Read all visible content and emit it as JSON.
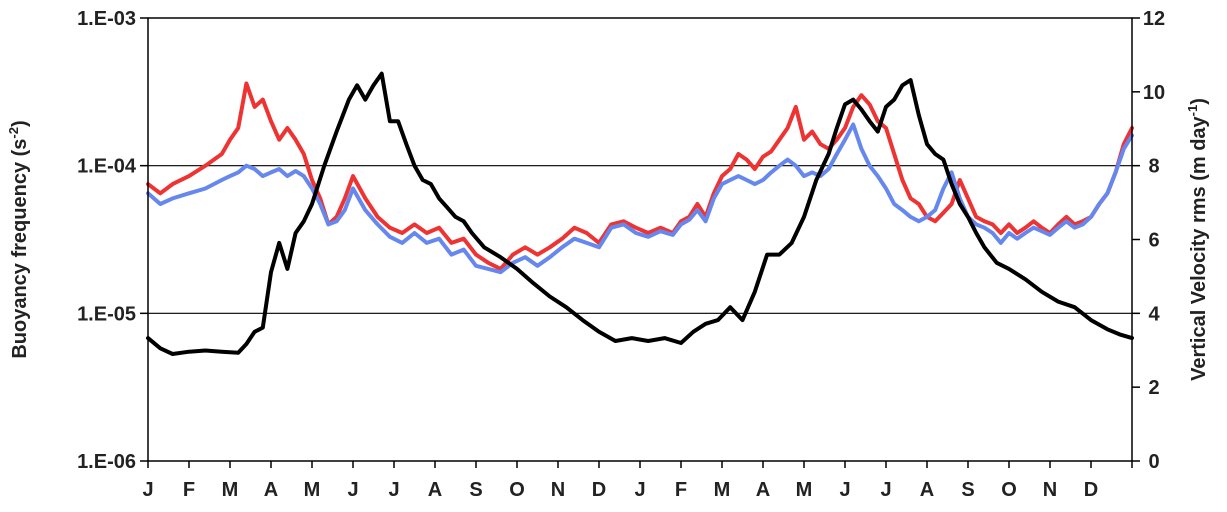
{
  "chart_data": {
    "type": "line",
    "title": "",
    "y_left": {
      "label": "Buoyancy frequency",
      "unit_prefix": "(s",
      "unit_sup": "-2",
      "unit_suffix": ")",
      "scale": "log",
      "range": [
        1e-06,
        0.001
      ],
      "ticks": [
        1e-06,
        1e-05,
        0.0001,
        0.001
      ],
      "tick_labels": [
        "1.E-06",
        "1.E-05",
        "1.E-04",
        "1.E-03"
      ]
    },
    "y_right": {
      "label": "Vertical Velocity rms",
      "unit_prefix": "(m day",
      "unit_sup": "-1",
      "unit_suffix": ")",
      "scale": "linear",
      "range": [
        0,
        12
      ],
      "ticks": [
        0,
        2,
        4,
        6,
        8,
        10,
        12
      ],
      "tick_labels": [
        "0",
        "2",
        "4",
        "6",
        "8",
        "10",
        "12"
      ]
    },
    "x_axis": {
      "range": [
        0,
        24
      ],
      "month_labels": [
        "J",
        "F",
        "M",
        "A",
        "M",
        "J",
        "J",
        "A",
        "S",
        "O",
        "N",
        "D",
        "J",
        "F",
        "M",
        "A",
        "M",
        "J",
        "J",
        "A",
        "S",
        "O",
        "N",
        "D"
      ]
    },
    "grid": {
      "horizontal_at_left_values": [
        1e-05,
        0.0001
      ]
    },
    "series": [
      {
        "axis": "left",
        "color": "#000000",
        "x": [
          0,
          0.3,
          0.6,
          1.0,
          1.4,
          1.8,
          2.2,
          2.4,
          2.6,
          2.8,
          3.0,
          3.2,
          3.4,
          3.6,
          3.8,
          4.0,
          4.3,
          4.6,
          4.9,
          5.1,
          5.3,
          5.5,
          5.7,
          5.9,
          6.1,
          6.3,
          6.5,
          6.7,
          6.9,
          7.1,
          7.3,
          7.5,
          7.7,
          7.9,
          8.2,
          8.6,
          9.0,
          9.4,
          9.8,
          10.2,
          10.6,
          11.0,
          11.4,
          11.8,
          12.2,
          12.6,
          13.0,
          13.3,
          13.6,
          13.9,
          14.2,
          14.5,
          14.8,
          15.1,
          15.4,
          15.7,
          16.0,
          16.3,
          16.6,
          16.8,
          17.0,
          17.2,
          17.4,
          17.6,
          17.8,
          18.0,
          18.2,
          18.4,
          18.6,
          18.8,
          19.0,
          19.2,
          19.4,
          19.6,
          19.8,
          20.0,
          20.2,
          20.4,
          20.7,
          21.0,
          21.4,
          21.8,
          22.2,
          22.6,
          23.0,
          23.4,
          23.7,
          24.0
        ],
        "y": [
          6.8e-06,
          5.8e-06,
          5.3e-06,
          5.5e-06,
          5.6e-06,
          5.5e-06,
          5.4e-06,
          6.2e-06,
          7.5e-06,
          8e-06,
          1.9e-05,
          3e-05,
          2e-05,
          3.5e-05,
          4.2e-05,
          5.5e-05,
          0.0001,
          0.00017,
          0.00028,
          0.00035,
          0.00028,
          0.00035,
          0.00042,
          0.0002,
          0.0002,
          0.00014,
          0.0001,
          8e-05,
          7.5e-05,
          6e-05,
          5.2e-05,
          4.5e-05,
          4.2e-05,
          3.5e-05,
          2.8e-05,
          2.4e-05,
          2e-05,
          1.6e-05,
          1.3e-05,
          1.1e-05,
          9e-06,
          7.5e-06,
          6.5e-06,
          6.8e-06,
          6.5e-06,
          6.8e-06,
          6.3e-06,
          7.5e-06,
          8.5e-06,
          9e-06,
          1.1e-05,
          9e-06,
          1.4e-05,
          2.5e-05,
          2.5e-05,
          3e-05,
          4.5e-05,
          8e-05,
          0.00012,
          0.00018,
          0.00026,
          0.00028,
          0.00024,
          0.0002,
          0.00017,
          0.00025,
          0.00028,
          0.00035,
          0.00038,
          0.00022,
          0.00014,
          0.00012,
          0.00011,
          7.5e-05,
          5.5e-05,
          4.5e-05,
          3.5e-05,
          2.8e-05,
          2.2e-05,
          2e-05,
          1.7e-05,
          1.4e-05,
          1.2e-05,
          1.1e-05,
          9e-06,
          7.8e-06,
          7.2e-06,
          6.8e-06
        ]
      },
      {
        "axis": "left",
        "color": "#ee3333",
        "x": [
          0,
          0.3,
          0.6,
          1.0,
          1.4,
          1.8,
          2.0,
          2.2,
          2.4,
          2.6,
          2.8,
          3.0,
          3.2,
          3.4,
          3.6,
          3.8,
          4.0,
          4.2,
          4.4,
          4.6,
          4.8,
          5.0,
          5.3,
          5.6,
          5.9,
          6.2,
          6.5,
          6.8,
          7.1,
          7.4,
          7.7,
          8.0,
          8.3,
          8.6,
          8.9,
          9.2,
          9.5,
          9.8,
          10.1,
          10.4,
          10.7,
          11.0,
          11.3,
          11.6,
          11.9,
          12.2,
          12.5,
          12.8,
          13.0,
          13.2,
          13.4,
          13.6,
          13.8,
          14.0,
          14.2,
          14.4,
          14.6,
          14.8,
          15.0,
          15.2,
          15.4,
          15.6,
          15.8,
          16.0,
          16.2,
          16.4,
          16.6,
          16.8,
          17.0,
          17.2,
          17.4,
          17.6,
          17.8,
          18.0,
          18.2,
          18.4,
          18.6,
          18.8,
          19.0,
          19.2,
          19.4,
          19.6,
          19.8,
          20.0,
          20.2,
          20.4,
          20.6,
          20.8,
          21.0,
          21.2,
          21.4,
          21.6,
          21.8,
          22.0,
          22.2,
          22.4,
          22.6,
          22.8,
          23.0,
          23.2,
          23.4,
          23.6,
          23.8,
          24.0
        ],
        "y": [
          7.5e-05,
          6.5e-05,
          7.5e-05,
          8.5e-05,
          0.0001,
          0.00012,
          0.00015,
          0.00018,
          0.00036,
          0.00025,
          0.00028,
          0.0002,
          0.00015,
          0.00018,
          0.00015,
          0.00012,
          8e-05,
          6e-05,
          4e-05,
          4.5e-05,
          6e-05,
          8.5e-05,
          6e-05,
          4.5e-05,
          3.8e-05,
          3.5e-05,
          4e-05,
          3.5e-05,
          3.8e-05,
          3e-05,
          3.2e-05,
          2.5e-05,
          2.2e-05,
          2e-05,
          2.5e-05,
          2.8e-05,
          2.5e-05,
          2.8e-05,
          3.2e-05,
          3.8e-05,
          3.5e-05,
          3e-05,
          4e-05,
          4.2e-05,
          3.8e-05,
          3.5e-05,
          3.8e-05,
          3.5e-05,
          4.2e-05,
          4.5e-05,
          5.5e-05,
          4.5e-05,
          6.5e-05,
          8.5e-05,
          9.5e-05,
          0.00012,
          0.00011,
          9.5e-05,
          0.000115,
          0.000125,
          0.00015,
          0.00018,
          0.00025,
          0.00015,
          0.00017,
          0.00014,
          0.00013,
          0.00015,
          0.00018,
          0.00025,
          0.0003,
          0.00026,
          0.0002,
          0.00018,
          0.00012,
          8e-05,
          6e-05,
          5.5e-05,
          4.5e-05,
          4.2e-05,
          4.8e-05,
          5.5e-05,
          8e-05,
          6e-05,
          4.5e-05,
          4.2e-05,
          4e-05,
          3.5e-05,
          4e-05,
          3.5e-05,
          3.8e-05,
          4.2e-05,
          3.8e-05,
          3.5e-05,
          4e-05,
          4.5e-05,
          4e-05,
          4.2e-05,
          4.5e-05,
          5.5e-05,
          6.5e-05,
          9e-05,
          0.00014,
          0.00018
        ]
      },
      {
        "axis": "left",
        "color": "#6688ee",
        "x": [
          0,
          0.3,
          0.6,
          1.0,
          1.4,
          1.8,
          2.0,
          2.2,
          2.4,
          2.6,
          2.8,
          3.0,
          3.2,
          3.4,
          3.6,
          3.8,
          4.0,
          4.2,
          4.4,
          4.6,
          4.8,
          5.0,
          5.3,
          5.6,
          5.9,
          6.2,
          6.5,
          6.8,
          7.1,
          7.4,
          7.7,
          8.0,
          8.3,
          8.6,
          8.9,
          9.2,
          9.5,
          9.8,
          10.1,
          10.4,
          10.7,
          11.0,
          11.3,
          11.6,
          11.9,
          12.2,
          12.5,
          12.8,
          13.0,
          13.2,
          13.4,
          13.6,
          13.8,
          14.0,
          14.2,
          14.4,
          14.6,
          14.8,
          15.0,
          15.2,
          15.4,
          15.6,
          15.8,
          16.0,
          16.2,
          16.4,
          16.6,
          16.8,
          17.0,
          17.2,
          17.4,
          17.6,
          17.8,
          18.0,
          18.2,
          18.4,
          18.6,
          18.8,
          19.0,
          19.2,
          19.4,
          19.6,
          19.8,
          20.0,
          20.2,
          20.4,
          20.6,
          20.8,
          21.0,
          21.2,
          21.4,
          21.6,
          21.8,
          22.0,
          22.2,
          22.4,
          22.6,
          22.8,
          23.0,
          23.2,
          23.4,
          23.6,
          23.8,
          24.0
        ],
        "y": [
          6.5e-05,
          5.5e-05,
          6e-05,
          6.5e-05,
          7e-05,
          8e-05,
          8.5e-05,
          9e-05,
          0.0001,
          9.5e-05,
          8.5e-05,
          9e-05,
          9.5e-05,
          8.5e-05,
          9.2e-05,
          8.5e-05,
          7e-05,
          5.5e-05,
          4e-05,
          4.2e-05,
          5e-05,
          7e-05,
          5e-05,
          4e-05,
          3.3e-05,
          3e-05,
          3.5e-05,
          3e-05,
          3.2e-05,
          2.5e-05,
          2.7e-05,
          2.1e-05,
          2e-05,
          1.9e-05,
          2.2e-05,
          2.4e-05,
          2.1e-05,
          2.4e-05,
          2.8e-05,
          3.2e-05,
          3e-05,
          2.8e-05,
          3.8e-05,
          4e-05,
          3.5e-05,
          3.3e-05,
          3.6e-05,
          3.4e-05,
          4e-05,
          4.3e-05,
          5e-05,
          4.2e-05,
          6e-05,
          7.5e-05,
          8e-05,
          8.5e-05,
          8e-05,
          7.5e-05,
          8e-05,
          9e-05,
          0.0001,
          0.00011,
          0.0001,
          8.5e-05,
          9e-05,
          8.5e-05,
          9.5e-05,
          0.00012,
          0.00015,
          0.00019,
          0.00013,
          0.0001,
          8.5e-05,
          7e-05,
          5.5e-05,
          5e-05,
          4.5e-05,
          4.2e-05,
          4.5e-05,
          5e-05,
          7e-05,
          9e-05,
          6e-05,
          4.5e-05,
          4e-05,
          3.8e-05,
          3.5e-05,
          3e-05,
          3.5e-05,
          3.2e-05,
          3.5e-05,
          3.8e-05,
          3.6e-05,
          3.4e-05,
          3.8e-05,
          4.2e-05,
          3.8e-05,
          4e-05,
          4.5e-05,
          5.5e-05,
          6.5e-05,
          9e-05,
          0.00013,
          0.00016
        ]
      }
    ]
  }
}
